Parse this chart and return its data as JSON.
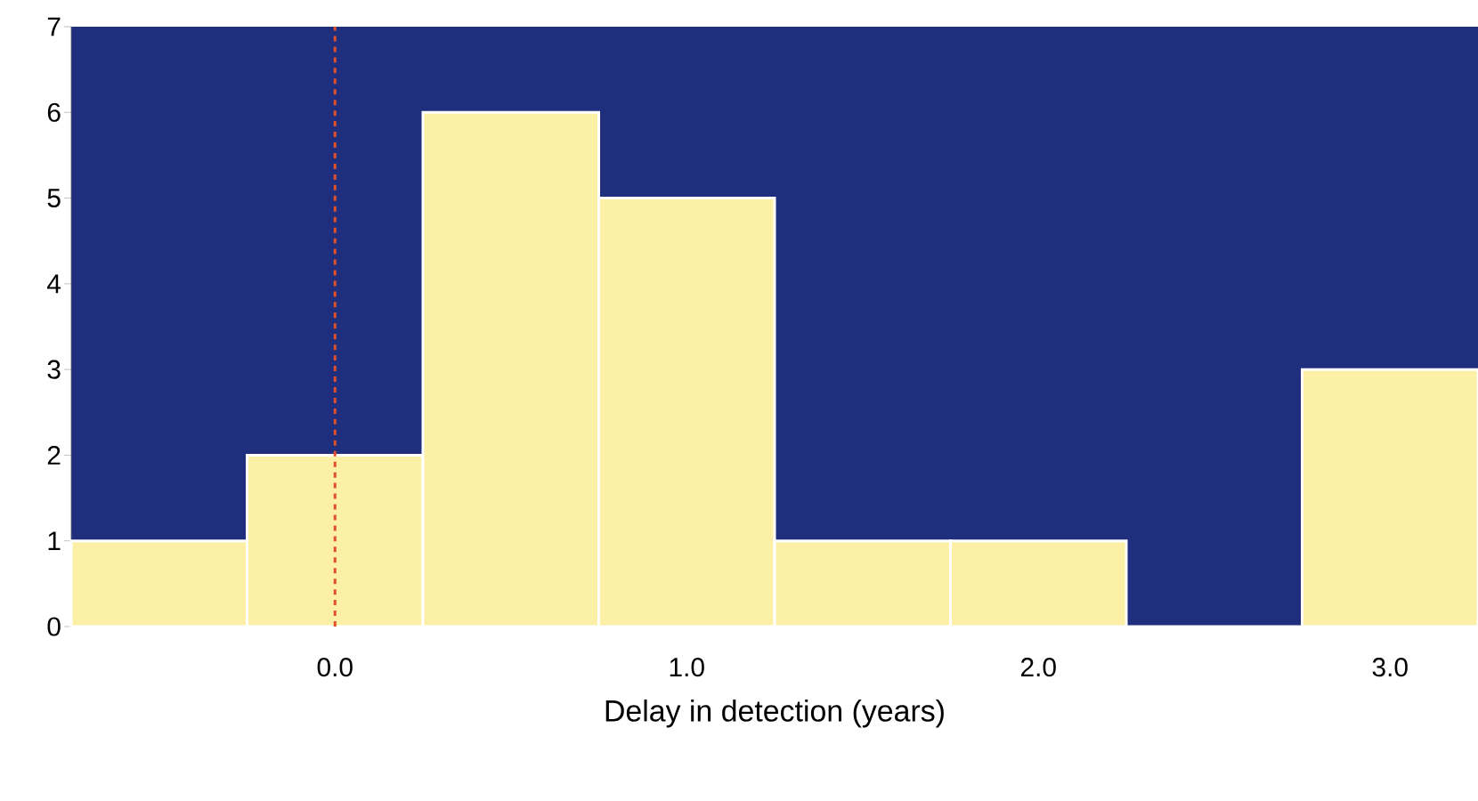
{
  "chart_data": {
    "type": "histogram",
    "xlabel": "Delay in detection (years)",
    "bins": [
      -0.75,
      -0.25,
      0.25,
      0.75,
      1.25,
      1.75,
      2.25,
      2.75,
      3.25
    ],
    "values": [
      1,
      2,
      6,
      5,
      1,
      1,
      0,
      3
    ],
    "color": "#fbf0a6",
    "xlim": [
      -0.75,
      3.25
    ],
    "ylim": [
      0,
      7
    ],
    "xticks": [
      {
        "value": 0,
        "label": "0.0"
      },
      {
        "value": 1,
        "label": "1.0"
      },
      {
        "value": 2,
        "label": "2.0"
      },
      {
        "value": 3,
        "label": "3.0"
      }
    ],
    "yticks": [
      0,
      1,
      2,
      3,
      4,
      5,
      6,
      7
    ],
    "ref_lines": [
      {
        "axis": "x",
        "value": 0,
        "color": "#e0502a",
        "line_style": "dashed"
      }
    ]
  }
}
